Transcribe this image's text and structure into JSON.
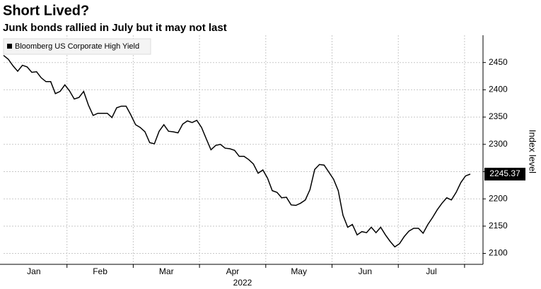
{
  "chart_data": {
    "type": "line",
    "title": "Short Lived?",
    "subtitle": "Junk bonds rallied in July but it may not last",
    "y_label": "Index level",
    "x_labels": [
      "Jan",
      "Feb",
      "Mar",
      "Apr",
      "May",
      "Jun",
      "Jul"
    ],
    "x_sublabel": "2022",
    "ylim": [
      2080,
      2500
    ],
    "yticks": [
      2100,
      2150,
      2200,
      2250,
      2300,
      2350,
      2400,
      2450
    ],
    "grid": true,
    "series": [
      {
        "name": "Bloomberg US Corporate High Yield",
        "color": "#000000",
        "values": [
          2463,
          2456,
          2444,
          2434,
          2445,
          2442,
          2432,
          2433,
          2422,
          2415,
          2415,
          2393,
          2397,
          2409,
          2398,
          2383,
          2386,
          2397,
          2372,
          2353,
          2357,
          2357,
          2357,
          2349,
          2367,
          2370,
          2370,
          2354,
          2336,
          2331,
          2323,
          2303,
          2301,
          2324,
          2336,
          2324,
          2323,
          2321,
          2337,
          2343,
          2340,
          2344,
          2331,
          2310,
          2290,
          2298,
          2300,
          2293,
          2292,
          2289,
          2278,
          2278,
          2272,
          2264,
          2247,
          2253,
          2238,
          2215,
          2212,
          2202,
          2203,
          2189,
          2188,
          2192,
          2198,
          2217,
          2254,
          2263,
          2262,
          2249,
          2236,
          2215,
          2170,
          2148,
          2153,
          2134,
          2140,
          2138,
          2148,
          2138,
          2148,
          2134,
          2122,
          2112,
          2118,
          2131,
          2141,
          2146,
          2146,
          2137,
          2153,
          2166,
          2180,
          2192,
          2202,
          2198,
          2212,
          2230,
          2242,
          2245.37
        ]
      }
    ]
  }
}
